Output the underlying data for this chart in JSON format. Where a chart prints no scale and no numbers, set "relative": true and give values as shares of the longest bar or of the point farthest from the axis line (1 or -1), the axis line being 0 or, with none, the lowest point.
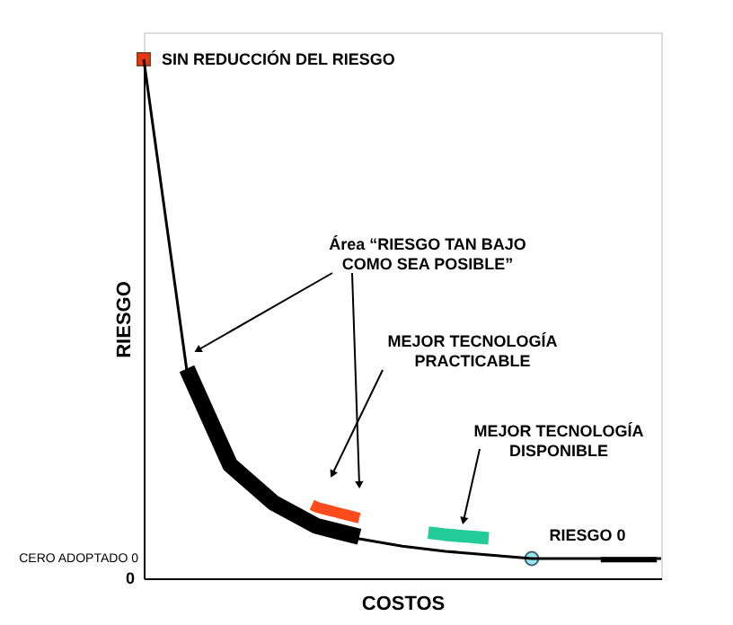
{
  "chart_data": {
    "type": "line",
    "relative": true,
    "xlabel": "COSTOS",
    "ylabel": "RIESGO",
    "grid": false,
    "categories": [
      null,
      null,
      null,
      null,
      null,
      null,
      null,
      null,
      null,
      null,
      null,
      null,
      null
    ],
    "series": [
      {
        "color": "#000000",
        "values": [
          1,
          0.4,
          0.215,
          0.142,
          0.097,
          0.076,
          0.062,
          0.052,
          0.045,
          0.038,
          0.038,
          0.038,
          0.038
        ]
      }
    ],
    "annotations": [
      "SIN REDUCCIÓN DEL RIESGO",
      "Área “RIESGO TAN BAJO\nCOMO SEA POSIBLE”",
      "MEJOR TECNOLOGÍA\nPRACTICABLE",
      "MEJOR TECNOLOGÍA\nDISPONIBLE",
      "RIESGO 0",
      "CERO ADOPTADO 0",
      "0"
    ]
  }
}
